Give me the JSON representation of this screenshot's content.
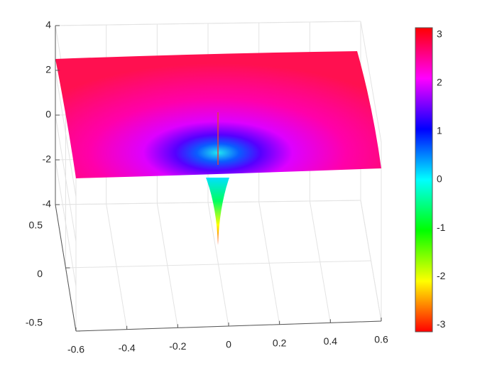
{
  "chart_data": {
    "type": "surface",
    "xlim": [
      -0.6,
      0.6
    ],
    "xticks": [
      -0.6,
      -0.4,
      -0.2,
      0,
      0.2,
      0.4,
      0.6
    ],
    "ylim": [
      -0.5,
      0.5
    ],
    "yticks": [
      -0.5,
      0,
      0.5
    ],
    "zlim": [
      -4,
      4
    ],
    "zticks": [
      -4,
      -2,
      0,
      2,
      4
    ],
    "grid": true,
    "colorbar": {
      "clim": [
        -3.1416,
        3.1416
      ],
      "ticks": [
        -3,
        -2,
        -1,
        0,
        1,
        2,
        3
      ],
      "colormap": [
        "#ff0000",
        "#ffff00",
        "#00ff00",
        "#00ffff",
        "#0000ff",
        "#ff00ff",
        "#ff0000"
      ]
    }
  }
}
